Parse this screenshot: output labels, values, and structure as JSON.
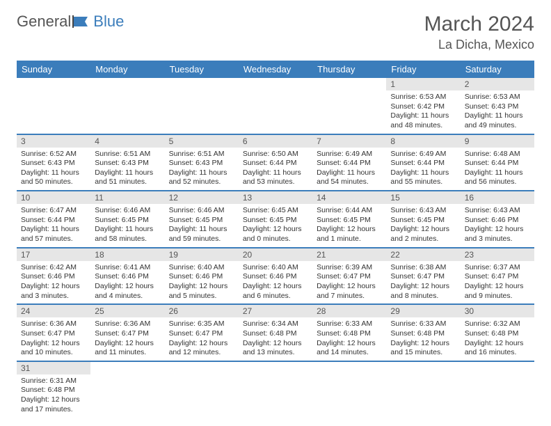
{
  "brand": {
    "part1": "General",
    "part2": "Blue"
  },
  "title": "March 2024",
  "location": "La Dicha, Mexico",
  "colors": {
    "header_bg": "#3b7dbb",
    "daynum_bg": "#e6e6e6",
    "text": "#333"
  },
  "weekdays": [
    "Sunday",
    "Monday",
    "Tuesday",
    "Wednesday",
    "Thursday",
    "Friday",
    "Saturday"
  ],
  "weeks": [
    [
      null,
      null,
      null,
      null,
      null,
      {
        "n": "1",
        "sr": "Sunrise: 6:53 AM",
        "ss": "Sunset: 6:42 PM",
        "dl": "Daylight: 11 hours and 48 minutes."
      },
      {
        "n": "2",
        "sr": "Sunrise: 6:53 AM",
        "ss": "Sunset: 6:43 PM",
        "dl": "Daylight: 11 hours and 49 minutes."
      }
    ],
    [
      {
        "n": "3",
        "sr": "Sunrise: 6:52 AM",
        "ss": "Sunset: 6:43 PM",
        "dl": "Daylight: 11 hours and 50 minutes."
      },
      {
        "n": "4",
        "sr": "Sunrise: 6:51 AM",
        "ss": "Sunset: 6:43 PM",
        "dl": "Daylight: 11 hours and 51 minutes."
      },
      {
        "n": "5",
        "sr": "Sunrise: 6:51 AM",
        "ss": "Sunset: 6:43 PM",
        "dl": "Daylight: 11 hours and 52 minutes."
      },
      {
        "n": "6",
        "sr": "Sunrise: 6:50 AM",
        "ss": "Sunset: 6:44 PM",
        "dl": "Daylight: 11 hours and 53 minutes."
      },
      {
        "n": "7",
        "sr": "Sunrise: 6:49 AM",
        "ss": "Sunset: 6:44 PM",
        "dl": "Daylight: 11 hours and 54 minutes."
      },
      {
        "n": "8",
        "sr": "Sunrise: 6:49 AM",
        "ss": "Sunset: 6:44 PM",
        "dl": "Daylight: 11 hours and 55 minutes."
      },
      {
        "n": "9",
        "sr": "Sunrise: 6:48 AM",
        "ss": "Sunset: 6:44 PM",
        "dl": "Daylight: 11 hours and 56 minutes."
      }
    ],
    [
      {
        "n": "10",
        "sr": "Sunrise: 6:47 AM",
        "ss": "Sunset: 6:44 PM",
        "dl": "Daylight: 11 hours and 57 minutes."
      },
      {
        "n": "11",
        "sr": "Sunrise: 6:46 AM",
        "ss": "Sunset: 6:45 PM",
        "dl": "Daylight: 11 hours and 58 minutes."
      },
      {
        "n": "12",
        "sr": "Sunrise: 6:46 AM",
        "ss": "Sunset: 6:45 PM",
        "dl": "Daylight: 11 hours and 59 minutes."
      },
      {
        "n": "13",
        "sr": "Sunrise: 6:45 AM",
        "ss": "Sunset: 6:45 PM",
        "dl": "Daylight: 12 hours and 0 minutes."
      },
      {
        "n": "14",
        "sr": "Sunrise: 6:44 AM",
        "ss": "Sunset: 6:45 PM",
        "dl": "Daylight: 12 hours and 1 minute."
      },
      {
        "n": "15",
        "sr": "Sunrise: 6:43 AM",
        "ss": "Sunset: 6:45 PM",
        "dl": "Daylight: 12 hours and 2 minutes."
      },
      {
        "n": "16",
        "sr": "Sunrise: 6:43 AM",
        "ss": "Sunset: 6:46 PM",
        "dl": "Daylight: 12 hours and 3 minutes."
      }
    ],
    [
      {
        "n": "17",
        "sr": "Sunrise: 6:42 AM",
        "ss": "Sunset: 6:46 PM",
        "dl": "Daylight: 12 hours and 3 minutes."
      },
      {
        "n": "18",
        "sr": "Sunrise: 6:41 AM",
        "ss": "Sunset: 6:46 PM",
        "dl": "Daylight: 12 hours and 4 minutes."
      },
      {
        "n": "19",
        "sr": "Sunrise: 6:40 AM",
        "ss": "Sunset: 6:46 PM",
        "dl": "Daylight: 12 hours and 5 minutes."
      },
      {
        "n": "20",
        "sr": "Sunrise: 6:40 AM",
        "ss": "Sunset: 6:46 PM",
        "dl": "Daylight: 12 hours and 6 minutes."
      },
      {
        "n": "21",
        "sr": "Sunrise: 6:39 AM",
        "ss": "Sunset: 6:47 PM",
        "dl": "Daylight: 12 hours and 7 minutes."
      },
      {
        "n": "22",
        "sr": "Sunrise: 6:38 AM",
        "ss": "Sunset: 6:47 PM",
        "dl": "Daylight: 12 hours and 8 minutes."
      },
      {
        "n": "23",
        "sr": "Sunrise: 6:37 AM",
        "ss": "Sunset: 6:47 PM",
        "dl": "Daylight: 12 hours and 9 minutes."
      }
    ],
    [
      {
        "n": "24",
        "sr": "Sunrise: 6:36 AM",
        "ss": "Sunset: 6:47 PM",
        "dl": "Daylight: 12 hours and 10 minutes."
      },
      {
        "n": "25",
        "sr": "Sunrise: 6:36 AM",
        "ss": "Sunset: 6:47 PM",
        "dl": "Daylight: 12 hours and 11 minutes."
      },
      {
        "n": "26",
        "sr": "Sunrise: 6:35 AM",
        "ss": "Sunset: 6:47 PM",
        "dl": "Daylight: 12 hours and 12 minutes."
      },
      {
        "n": "27",
        "sr": "Sunrise: 6:34 AM",
        "ss": "Sunset: 6:48 PM",
        "dl": "Daylight: 12 hours and 13 minutes."
      },
      {
        "n": "28",
        "sr": "Sunrise: 6:33 AM",
        "ss": "Sunset: 6:48 PM",
        "dl": "Daylight: 12 hours and 14 minutes."
      },
      {
        "n": "29",
        "sr": "Sunrise: 6:33 AM",
        "ss": "Sunset: 6:48 PM",
        "dl": "Daylight: 12 hours and 15 minutes."
      },
      {
        "n": "30",
        "sr": "Sunrise: 6:32 AM",
        "ss": "Sunset: 6:48 PM",
        "dl": "Daylight: 12 hours and 16 minutes."
      }
    ],
    [
      {
        "n": "31",
        "sr": "Sunrise: 6:31 AM",
        "ss": "Sunset: 6:48 PM",
        "dl": "Daylight: 12 hours and 17 minutes."
      },
      null,
      null,
      null,
      null,
      null,
      null
    ]
  ]
}
